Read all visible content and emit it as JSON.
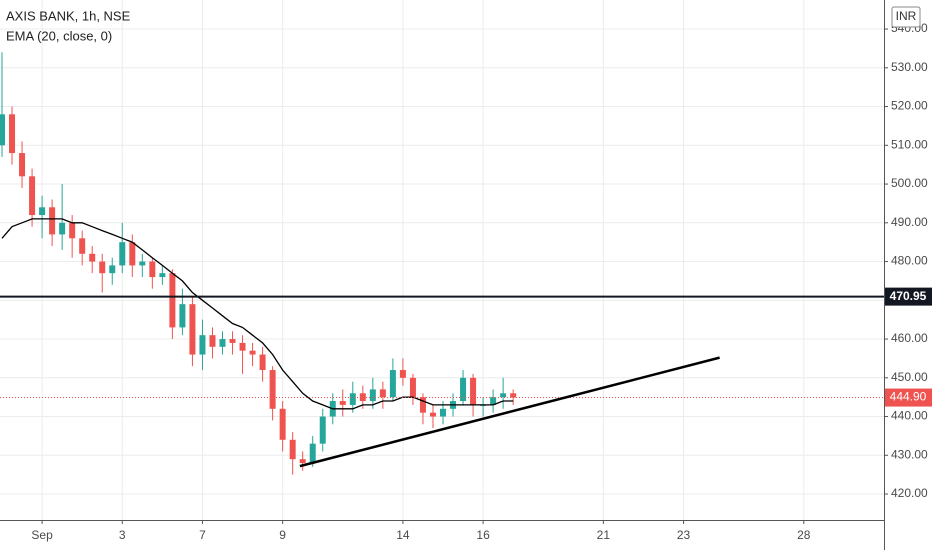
{
  "chart_data": {
    "type": "candlestick",
    "title": "AXIS BANK, 1h, NSE",
    "indicator": "EMA (20, close, 0)",
    "currency": "INR",
    "up_color": "#26a69a",
    "down_color": "#ef5350",
    "grid": true,
    "x": [
      -1.0,
      -0.75,
      -0.5,
      -0.25,
      0,
      0.25,
      0.5,
      0.75,
      1,
      1.25,
      1.5,
      1.75,
      2,
      2.25,
      2.5,
      2.75,
      3,
      3.25,
      3.5,
      3.75,
      4,
      4.25,
      4.5,
      4.75,
      5,
      5.25,
      5.5,
      5.75,
      6,
      6.25,
      6.5,
      6.75,
      7,
      7.25,
      7.5,
      7.75,
      8,
      8.25,
      8.5,
      8.75,
      9,
      9.25,
      9.5,
      9.75,
      10,
      10.25,
      10.5,
      10.75,
      11,
      11.25,
      11.5,
      11.75
    ],
    "open": [
      510,
      518,
      508,
      502,
      492,
      494,
      487,
      490,
      486,
      482,
      480,
      477,
      479,
      485,
      479,
      480,
      476,
      477,
      463,
      469,
      456,
      461,
      458,
      460,
      459,
      457,
      456,
      452,
      442,
      434,
      429,
      428,
      433,
      440,
      444,
      443,
      446,
      444,
      447,
      445,
      452,
      450,
      445,
      441,
      440,
      442,
      444,
      450,
      443,
      443,
      445,
      446
    ],
    "high": [
      534,
      520,
      511,
      504,
      497,
      496,
      500,
      492,
      488,
      484,
      482,
      481,
      490,
      487,
      482,
      481,
      479,
      478,
      473,
      471,
      465,
      463,
      462,
      462,
      461,
      459,
      458,
      453,
      444,
      436,
      431,
      435,
      442,
      446,
      447,
      449,
      448,
      450,
      449,
      455,
      455,
      451,
      446,
      443,
      444,
      446,
      452,
      451,
      445,
      447,
      450,
      447
    ],
    "low": [
      507,
      505,
      499,
      489,
      486,
      484,
      483,
      481,
      479,
      477,
      472,
      474,
      477,
      476,
      476,
      473,
      474,
      460,
      461,
      453,
      452,
      455,
      456,
      456,
      451,
      453,
      449,
      439,
      431,
      425,
      426,
      427,
      431,
      438,
      440,
      441,
      442,
      442,
      442,
      444,
      448,
      443,
      438,
      437,
      438,
      440,
      443,
      440,
      440,
      441,
      442,
      443
    ],
    "close": [
      518,
      508,
      502,
      492,
      494,
      487,
      490,
      486,
      482,
      480,
      477,
      479,
      485,
      479,
      480,
      476,
      477,
      463,
      469,
      456,
      461,
      458,
      460,
      459,
      457,
      456,
      452,
      442,
      434,
      429,
      428,
      433,
      440,
      444,
      443,
      446,
      444,
      447,
      445,
      452,
      450,
      445,
      441,
      440,
      442,
      444,
      450,
      443,
      443,
      445,
      446,
      444.9
    ],
    "ema": [
      486,
      489,
      490,
      491,
      491,
      491,
      491,
      490,
      490,
      489,
      488,
      487,
      486,
      485,
      483,
      481,
      479,
      477,
      475,
      472,
      470,
      468,
      466,
      464,
      463,
      461,
      459,
      456,
      452,
      449,
      446,
      444,
      443,
      442,
      442,
      442,
      443,
      443,
      444,
      444,
      445,
      445,
      444,
      443,
      443,
      443,
      443,
      443,
      443,
      443,
      444,
      444
    ],
    "ema_color": "#000000",
    "resistance": 470.95,
    "last_price": {
      "value": 444.9,
      "label": "444.90"
    },
    "trendline": {
      "x": [
        6.43,
        16.9
      ],
      "y": [
        427.2,
        455.2
      ]
    },
    "xlim": [
      -1.05,
      21.0
    ],
    "ylim": [
      413.3,
      547.5
    ],
    "xticks": [
      {
        "value": 0,
        "label": "Sep"
      },
      {
        "value": 2,
        "label": "3"
      },
      {
        "value": 4,
        "label": "7"
      },
      {
        "value": 6,
        "label": "9"
      },
      {
        "value": 9,
        "label": "14"
      },
      {
        "value": 11,
        "label": "16"
      },
      {
        "value": 14,
        "label": "21"
      },
      {
        "value": 16,
        "label": "23"
      },
      {
        "value": 19,
        "label": "28"
      }
    ],
    "yticks": [
      {
        "value": 420,
        "label": "420.00"
      },
      {
        "value": 430,
        "label": "430.00"
      },
      {
        "value": 440,
        "label": "440.00"
      },
      {
        "value": 450,
        "label": "450.00"
      },
      {
        "value": 460,
        "label": "460.00"
      },
      {
        "value": 470,
        "label": "470.00"
      },
      {
        "value": 480,
        "label": "480.00"
      },
      {
        "value": 490,
        "label": "490.00"
      },
      {
        "value": 500,
        "label": "500.00"
      },
      {
        "value": 510,
        "label": "510.00"
      },
      {
        "value": 520,
        "label": "520.00"
      },
      {
        "value": 530,
        "label": "530.00"
      },
      {
        "value": 540,
        "label": "540.00"
      }
    ]
  }
}
